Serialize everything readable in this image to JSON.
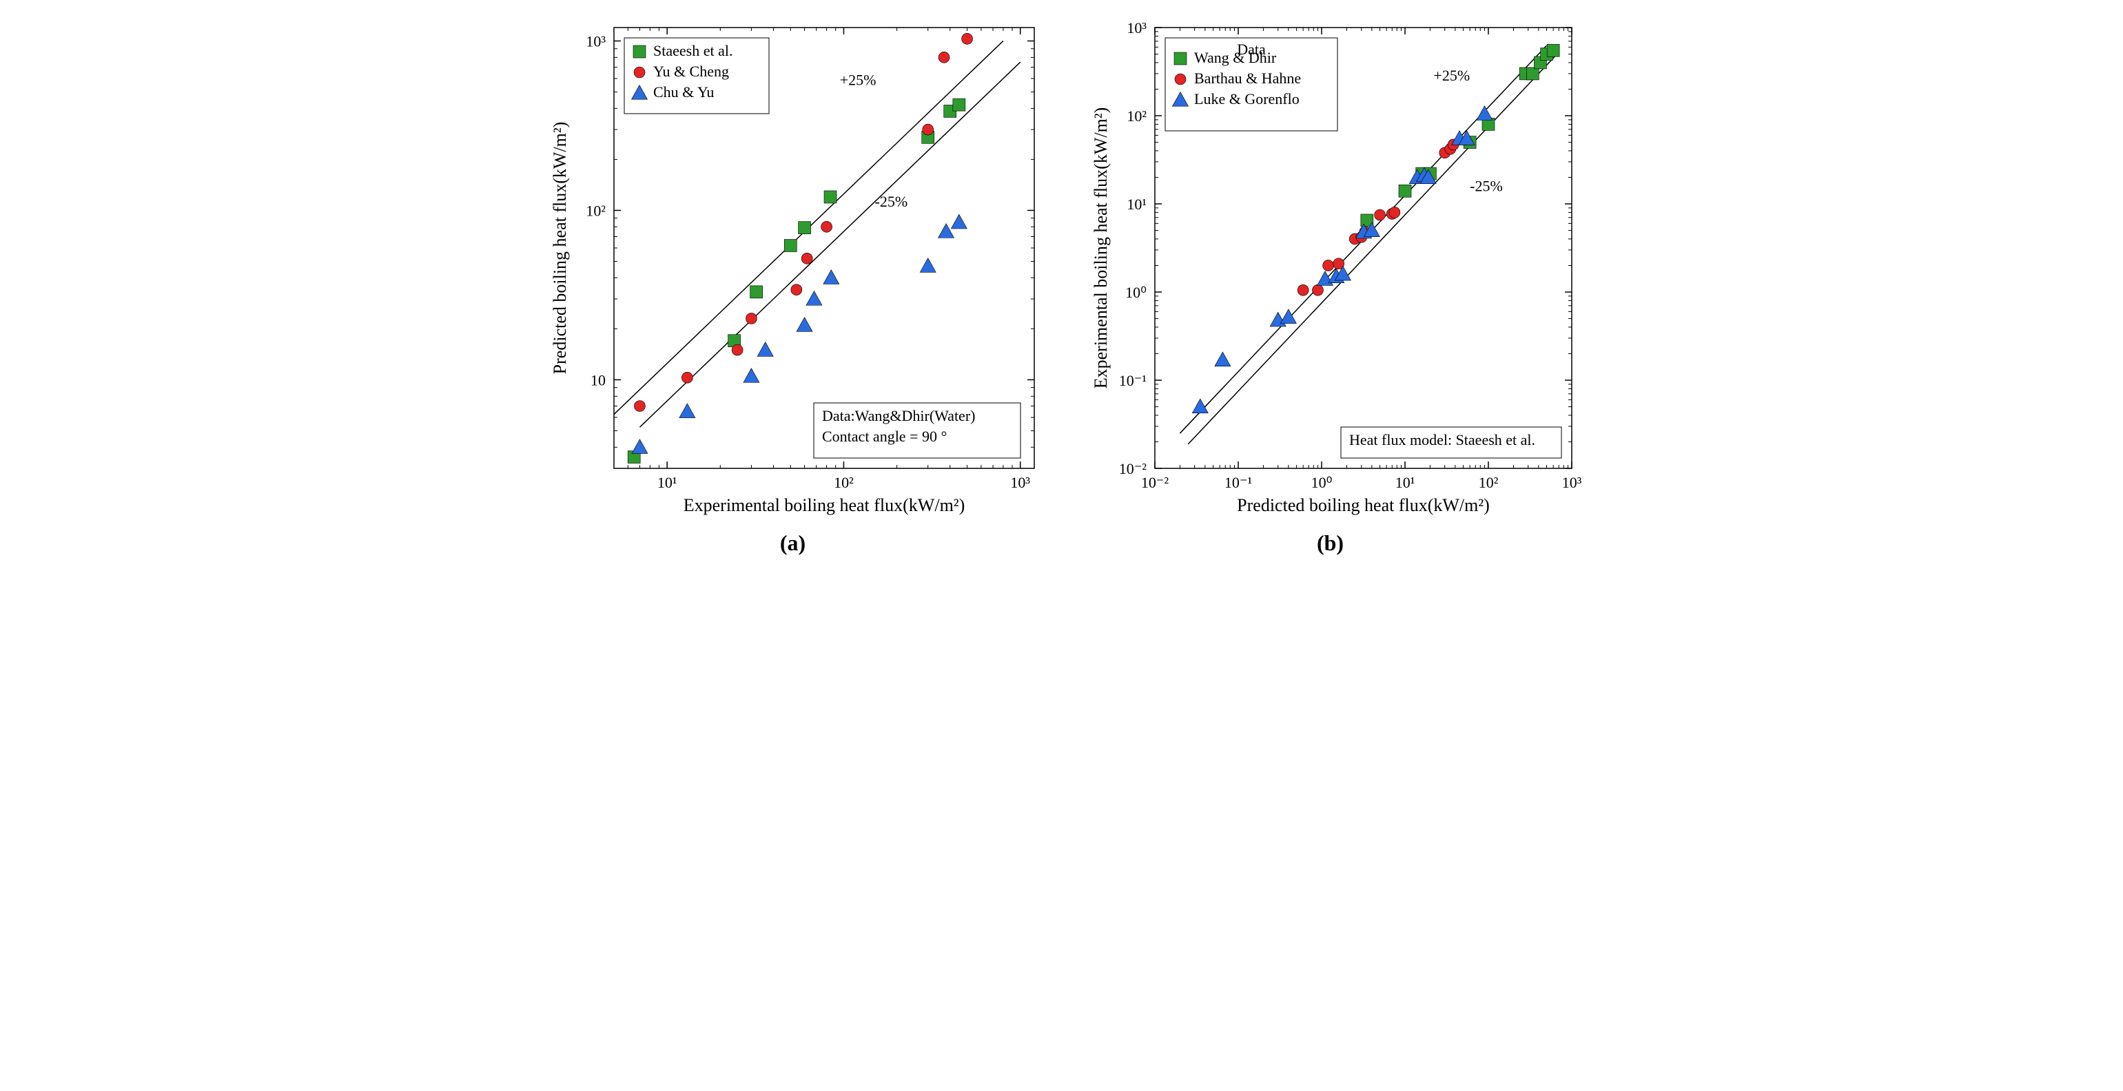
{
  "colors": {
    "green": "#2e9b2e",
    "red": "#e22424",
    "blue": "#2a6be0",
    "black": "#000000",
    "white": "#ffffff"
  },
  "markers": {
    "square_size": 9,
    "circle_size": 8,
    "triangle_size": 10
  },
  "panel_a": {
    "label": "(a)",
    "xlabel": "Experimental boiling heat flux(kW/m²)",
    "ylabel": "Predicted boiling heat flux(kW/m²)",
    "xlim": [
      5,
      1200
    ],
    "ylim": [
      3,
      1200
    ],
    "xticks": [
      10,
      100,
      1000
    ],
    "yticks": [
      10,
      100,
      1000
    ],
    "xtick_labels": [
      "10¹",
      "10²",
      "10³"
    ],
    "ytick_labels": [
      "10",
      "10²",
      "10³"
    ],
    "annotations": {
      "upper": "+25%",
      "lower": "-25%"
    },
    "info_box": {
      "line1": "Data:Wang&Dhir(Water)",
      "line2": "Contact angle = 90 °"
    },
    "legend_items": [
      {
        "label": "Staeesh et al.",
        "marker": "square",
        "color": "#2e9b2e"
      },
      {
        "label": "Yu & Cheng",
        "marker": "circle",
        "color": "#e22424"
      },
      {
        "label": "Chu & Yu",
        "marker": "triangle",
        "color": "#2a6be0"
      }
    ],
    "ref_lines": {
      "upper": {
        "x0": 5,
        "y0": 6.25,
        "x1": 800,
        "y1": 1000
      },
      "lower": {
        "x0": 7,
        "y0": 5.25,
        "x1": 1000,
        "y1": 750
      }
    },
    "series": [
      {
        "name": "Staeesh et al.",
        "marker": "square",
        "color": "#2e9b2e",
        "points": [
          [
            6.5,
            3.5
          ],
          [
            24,
            17
          ],
          [
            32,
            33
          ],
          [
            50,
            62
          ],
          [
            60,
            79
          ],
          [
            84,
            120
          ],
          [
            300,
            270
          ],
          [
            400,
            385
          ],
          [
            450,
            420
          ]
        ]
      },
      {
        "name": "Yu & Cheng",
        "marker": "circle",
        "color": "#e22424",
        "points": [
          [
            7,
            7
          ],
          [
            13,
            10.3
          ],
          [
            25,
            15
          ],
          [
            30,
            23
          ],
          [
            54,
            34
          ],
          [
            62,
            52
          ],
          [
            80,
            80
          ],
          [
            300,
            300
          ],
          [
            370,
            800
          ],
          [
            500,
            1030
          ]
        ]
      },
      {
        "name": "Chu & Yu",
        "marker": "triangle",
        "color": "#2a6be0",
        "points": [
          [
            7,
            4
          ],
          [
            13,
            6.5
          ],
          [
            30,
            10.5
          ],
          [
            36,
            15
          ],
          [
            60,
            21
          ],
          [
            68,
            30
          ],
          [
            85,
            40
          ],
          [
            300,
            47
          ],
          [
            380,
            75
          ],
          [
            450,
            85
          ]
        ]
      }
    ]
  },
  "panel_b": {
    "label": "(b)",
    "xlabel": "Predicted boiling heat flux(kW/m²)",
    "ylabel": "Experimental boiling heat flux(kW/m²)",
    "xlim": [
      0.01,
      1000
    ],
    "ylim": [
      0.01,
      1000
    ],
    "xticks": [
      0.01,
      0.1,
      1,
      10,
      100,
      1000
    ],
    "yticks": [
      0.01,
      0.1,
      1,
      10,
      100,
      1000
    ],
    "xtick_labels": [
      "10⁻²",
      "10⁻¹",
      "10⁰",
      "10¹",
      "10²",
      "10³"
    ],
    "ytick_labels": [
      "10⁻²",
      "10⁻¹",
      "10⁰",
      "10¹",
      "10²",
      "10³"
    ],
    "legend_title": "Data",
    "annotations": {
      "upper": "+25%",
      "lower": "-25%"
    },
    "info_box": {
      "line1": "Heat flux model: Staeesh et al."
    },
    "legend_items": [
      {
        "label": "Wang & Dhir",
        "marker": "square",
        "color": "#2e9b2e"
      },
      {
        "label": "Barthau & Hahne",
        "marker": "circle",
        "color": "#e22424"
      },
      {
        "label": "Luke & Gorenflo",
        "marker": "triangle",
        "color": "#2a6be0"
      }
    ],
    "ref_lines": {
      "upper": {
        "x0": 0.02,
        "y0": 0.025,
        "x1": 500,
        "y1": 625
      },
      "lower": {
        "x0": 0.025,
        "y0": 0.0188,
        "x1": 650,
        "y1": 487.5
      }
    },
    "series": [
      {
        "name": "Wang & Dhir",
        "marker": "square",
        "color": "#2e9b2e",
        "points": [
          [
            3.5,
            6.5
          ],
          [
            10,
            14
          ],
          [
            16,
            22
          ],
          [
            20,
            22
          ],
          [
            60,
            50
          ],
          [
            100,
            80
          ],
          [
            280,
            300
          ],
          [
            340,
            300
          ],
          [
            420,
            400
          ],
          [
            500,
            500
          ],
          [
            600,
            550
          ]
        ]
      },
      {
        "name": "Barthau & Hahne",
        "marker": "circle",
        "color": "#e22424",
        "points": [
          [
            0.6,
            1.05
          ],
          [
            0.9,
            1.05
          ],
          [
            1.2,
            2.0
          ],
          [
            1.6,
            2.1
          ],
          [
            2.5,
            4.0
          ],
          [
            3.0,
            4.2
          ],
          [
            3.3,
            4.8
          ],
          [
            5.0,
            7.5
          ],
          [
            7.0,
            7.7
          ],
          [
            7.5,
            8.0
          ],
          [
            30,
            38
          ],
          [
            35,
            42
          ],
          [
            38,
            47
          ]
        ]
      },
      {
        "name": "Luke & Gorenflo",
        "marker": "triangle",
        "color": "#2a6be0",
        "points": [
          [
            0.035,
            0.05
          ],
          [
            0.065,
            0.17
          ],
          [
            0.3,
            0.48
          ],
          [
            0.4,
            0.52
          ],
          [
            1.1,
            1.4
          ],
          [
            1.5,
            1.5
          ],
          [
            1.8,
            1.6
          ],
          [
            3.2,
            4.8
          ],
          [
            4.0,
            5.0
          ],
          [
            14,
            20
          ],
          [
            17,
            21
          ],
          [
            19,
            20
          ],
          [
            45,
            55
          ],
          [
            55,
            55
          ],
          [
            90,
            105
          ]
        ]
      }
    ]
  }
}
